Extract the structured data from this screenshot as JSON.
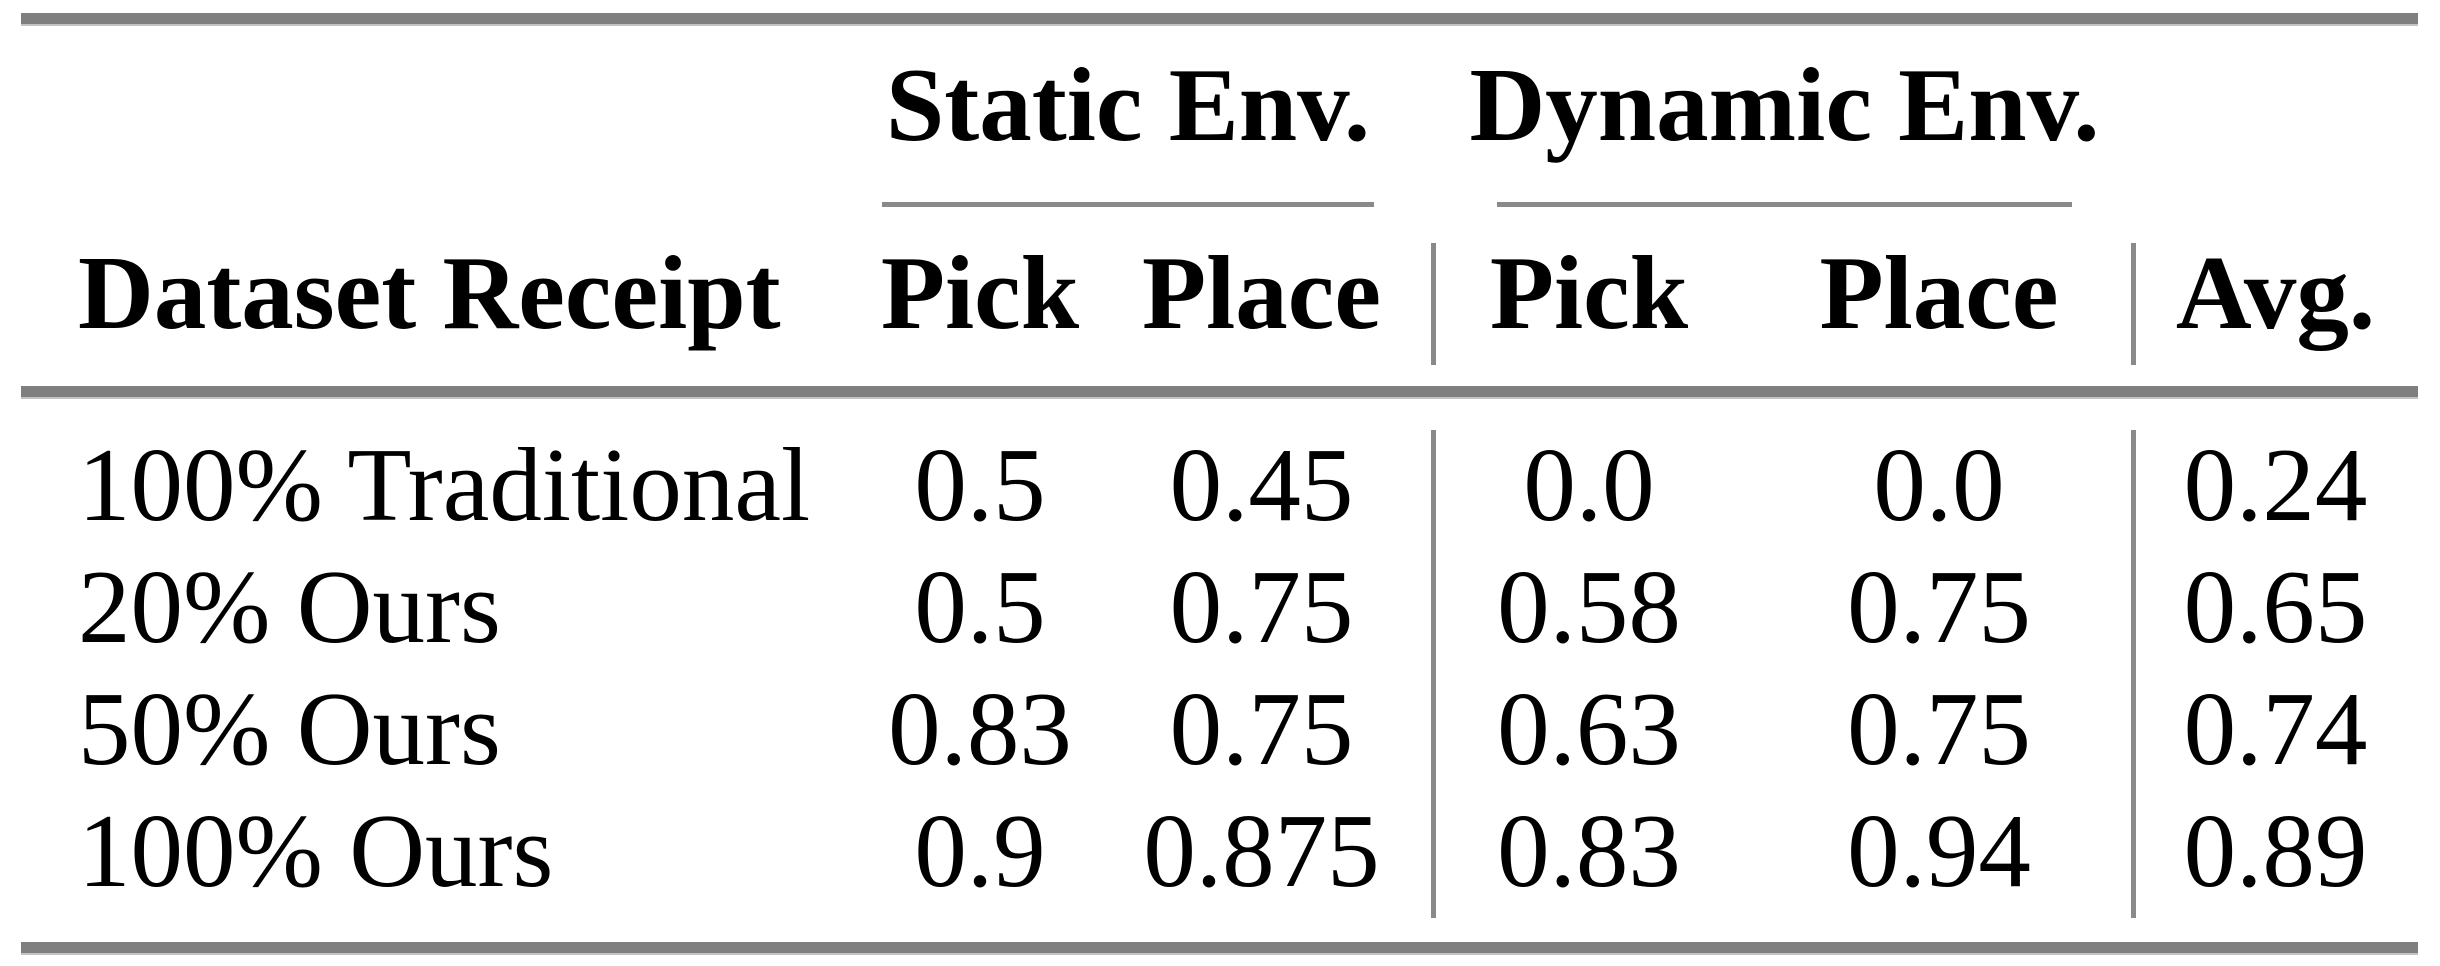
{
  "table": {
    "group_headers": [
      {
        "label": "Static Env."
      },
      {
        "label": "Dynamic Env."
      }
    ],
    "column_headers": {
      "label": "Dataset Receipt",
      "static_pick": "Pick",
      "static_place": "Place",
      "dynamic_pick": "Pick",
      "dynamic_place": "Place",
      "avg": "Avg."
    },
    "rows": [
      {
        "label": "100% Traditional",
        "values": [
          "0.5",
          "0.45",
          "0.0",
          "0.0",
          "0.24"
        ]
      },
      {
        "label": "20% Ours",
        "values": [
          "0.5",
          "0.75",
          "0.58",
          "0.75",
          "0.65"
        ]
      },
      {
        "label": "50% Ours",
        "values": [
          "0.83",
          "0.75",
          "0.63",
          "0.75",
          "0.74"
        ]
      },
      {
        "label": "100% Ours",
        "values": [
          "0.9",
          "0.875",
          "0.83",
          "0.94",
          "0.89"
        ]
      }
    ],
    "colors": {
      "rule": "#7f7f7f",
      "rule_light_edge": "#c4c4c4",
      "separator": "#8a8a8a",
      "text": "#000000",
      "background": "#ffffff"
    }
  },
  "chart_data": {
    "type": "table",
    "column_groups": [
      "",
      "Static Env.",
      "Static Env.",
      "Dynamic Env.",
      "Dynamic Env.",
      ""
    ],
    "columns": [
      "Dataset Receipt",
      "Pick",
      "Place",
      "Pick",
      "Place",
      "Avg."
    ],
    "rows": [
      [
        "100% Traditional",
        0.5,
        0.45,
        0.0,
        0.0,
        0.24
      ],
      [
        "20% Ours",
        0.5,
        0.75,
        0.58,
        0.75,
        0.65
      ],
      [
        "50% Ours",
        0.83,
        0.75,
        0.63,
        0.75,
        0.74
      ],
      [
        "100% Ours",
        0.9,
        0.875,
        0.83,
        0.94,
        0.89
      ]
    ]
  }
}
